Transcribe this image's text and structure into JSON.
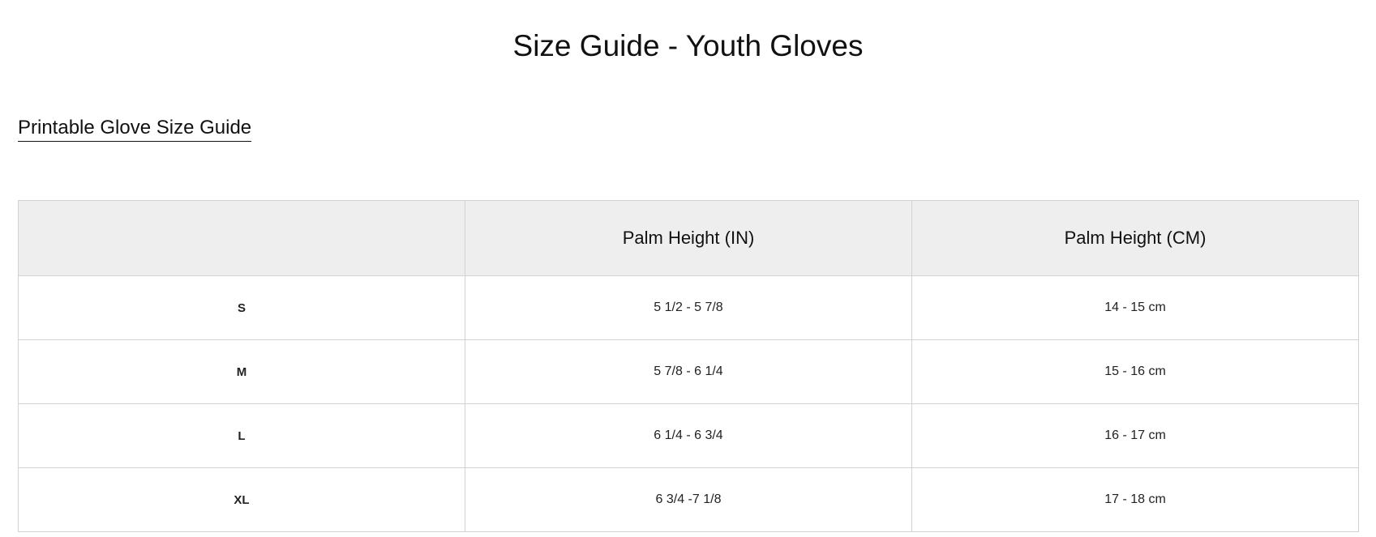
{
  "page_title": "Size Guide - Youth Gloves",
  "printable_link": "Printable Glove Size Guide",
  "table": {
    "headers": [
      "",
      "Palm Height (IN)",
      "Palm Height (CM)"
    ],
    "rows": [
      {
        "size": "S",
        "inches": "5 1/2 - 5 7/8",
        "cm": "14 - 15 cm"
      },
      {
        "size": "M",
        "inches": "5 7/8 - 6 1/4",
        "cm": "15 - 16 cm"
      },
      {
        "size": "L",
        "inches": "6 1/4 - 6 3/4",
        "cm": "16 - 17 cm"
      },
      {
        "size": "XL",
        "inches": "6 3/4 -7 1/8",
        "cm": "17 - 18 cm"
      }
    ]
  }
}
